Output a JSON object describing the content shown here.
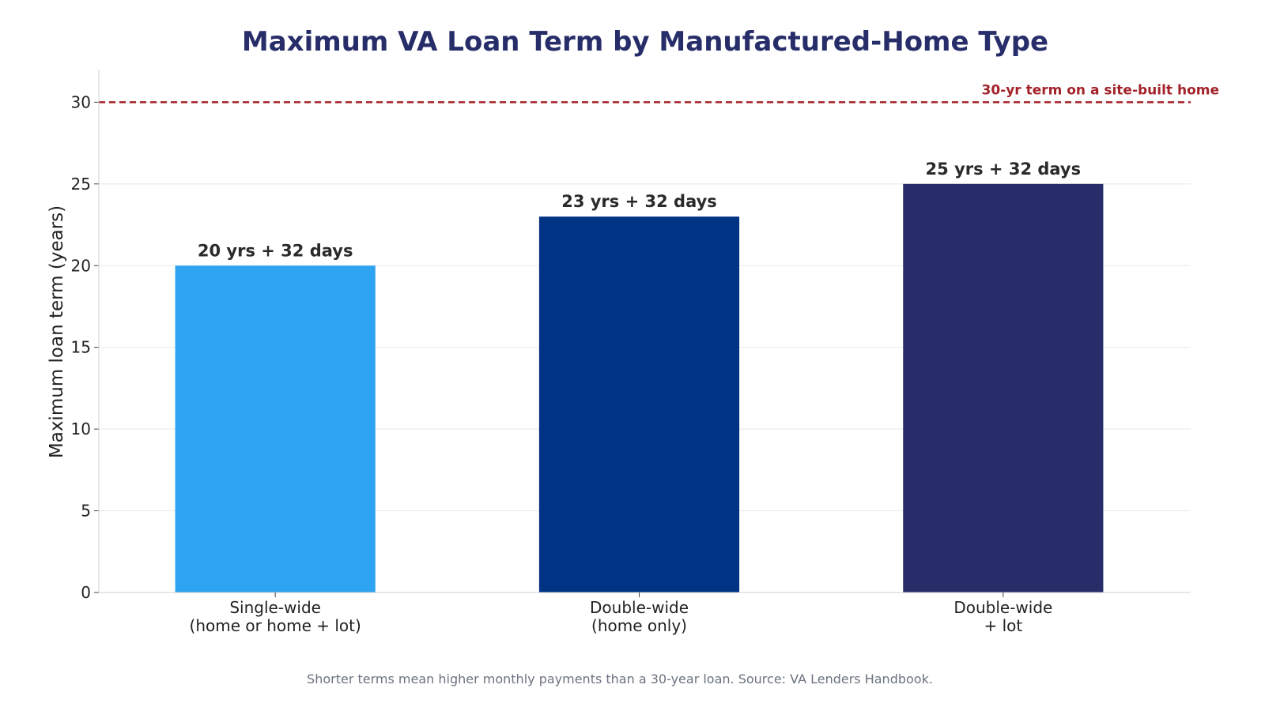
{
  "chart_data": {
    "type": "bar",
    "title": "Maximum VA Loan Term by Manufactured-Home Type",
    "xlabel": "",
    "ylabel": "Maximum loan term (years)",
    "ylim": [
      0,
      32
    ],
    "yticks": [
      "0",
      "5",
      "10",
      "15",
      "20",
      "25",
      "30"
    ],
    "categories": [
      [
        "Single-wide",
        "(home or home + lot)"
      ],
      [
        "Double-wide",
        "(home only)"
      ],
      [
        "Double-wide",
        "+ lot"
      ]
    ],
    "values": [
      20,
      23,
      25
    ],
    "data_labels": [
      "20 yrs + 32 days",
      "23 yrs + 32 days",
      "25 yrs + 32 days"
    ],
    "bar_colors": [
      "#2EA3F2",
      "#003383",
      "#282D69"
    ],
    "grid": "horizontal",
    "reference_line": {
      "value": 30,
      "label": "30-yr term on a site-built home",
      "color": "#A3232A",
      "style": "dashed"
    },
    "footnote": "Shorter terms mean higher monthly payments than a 30-year loan. Source: VA Lenders Handbook."
  }
}
